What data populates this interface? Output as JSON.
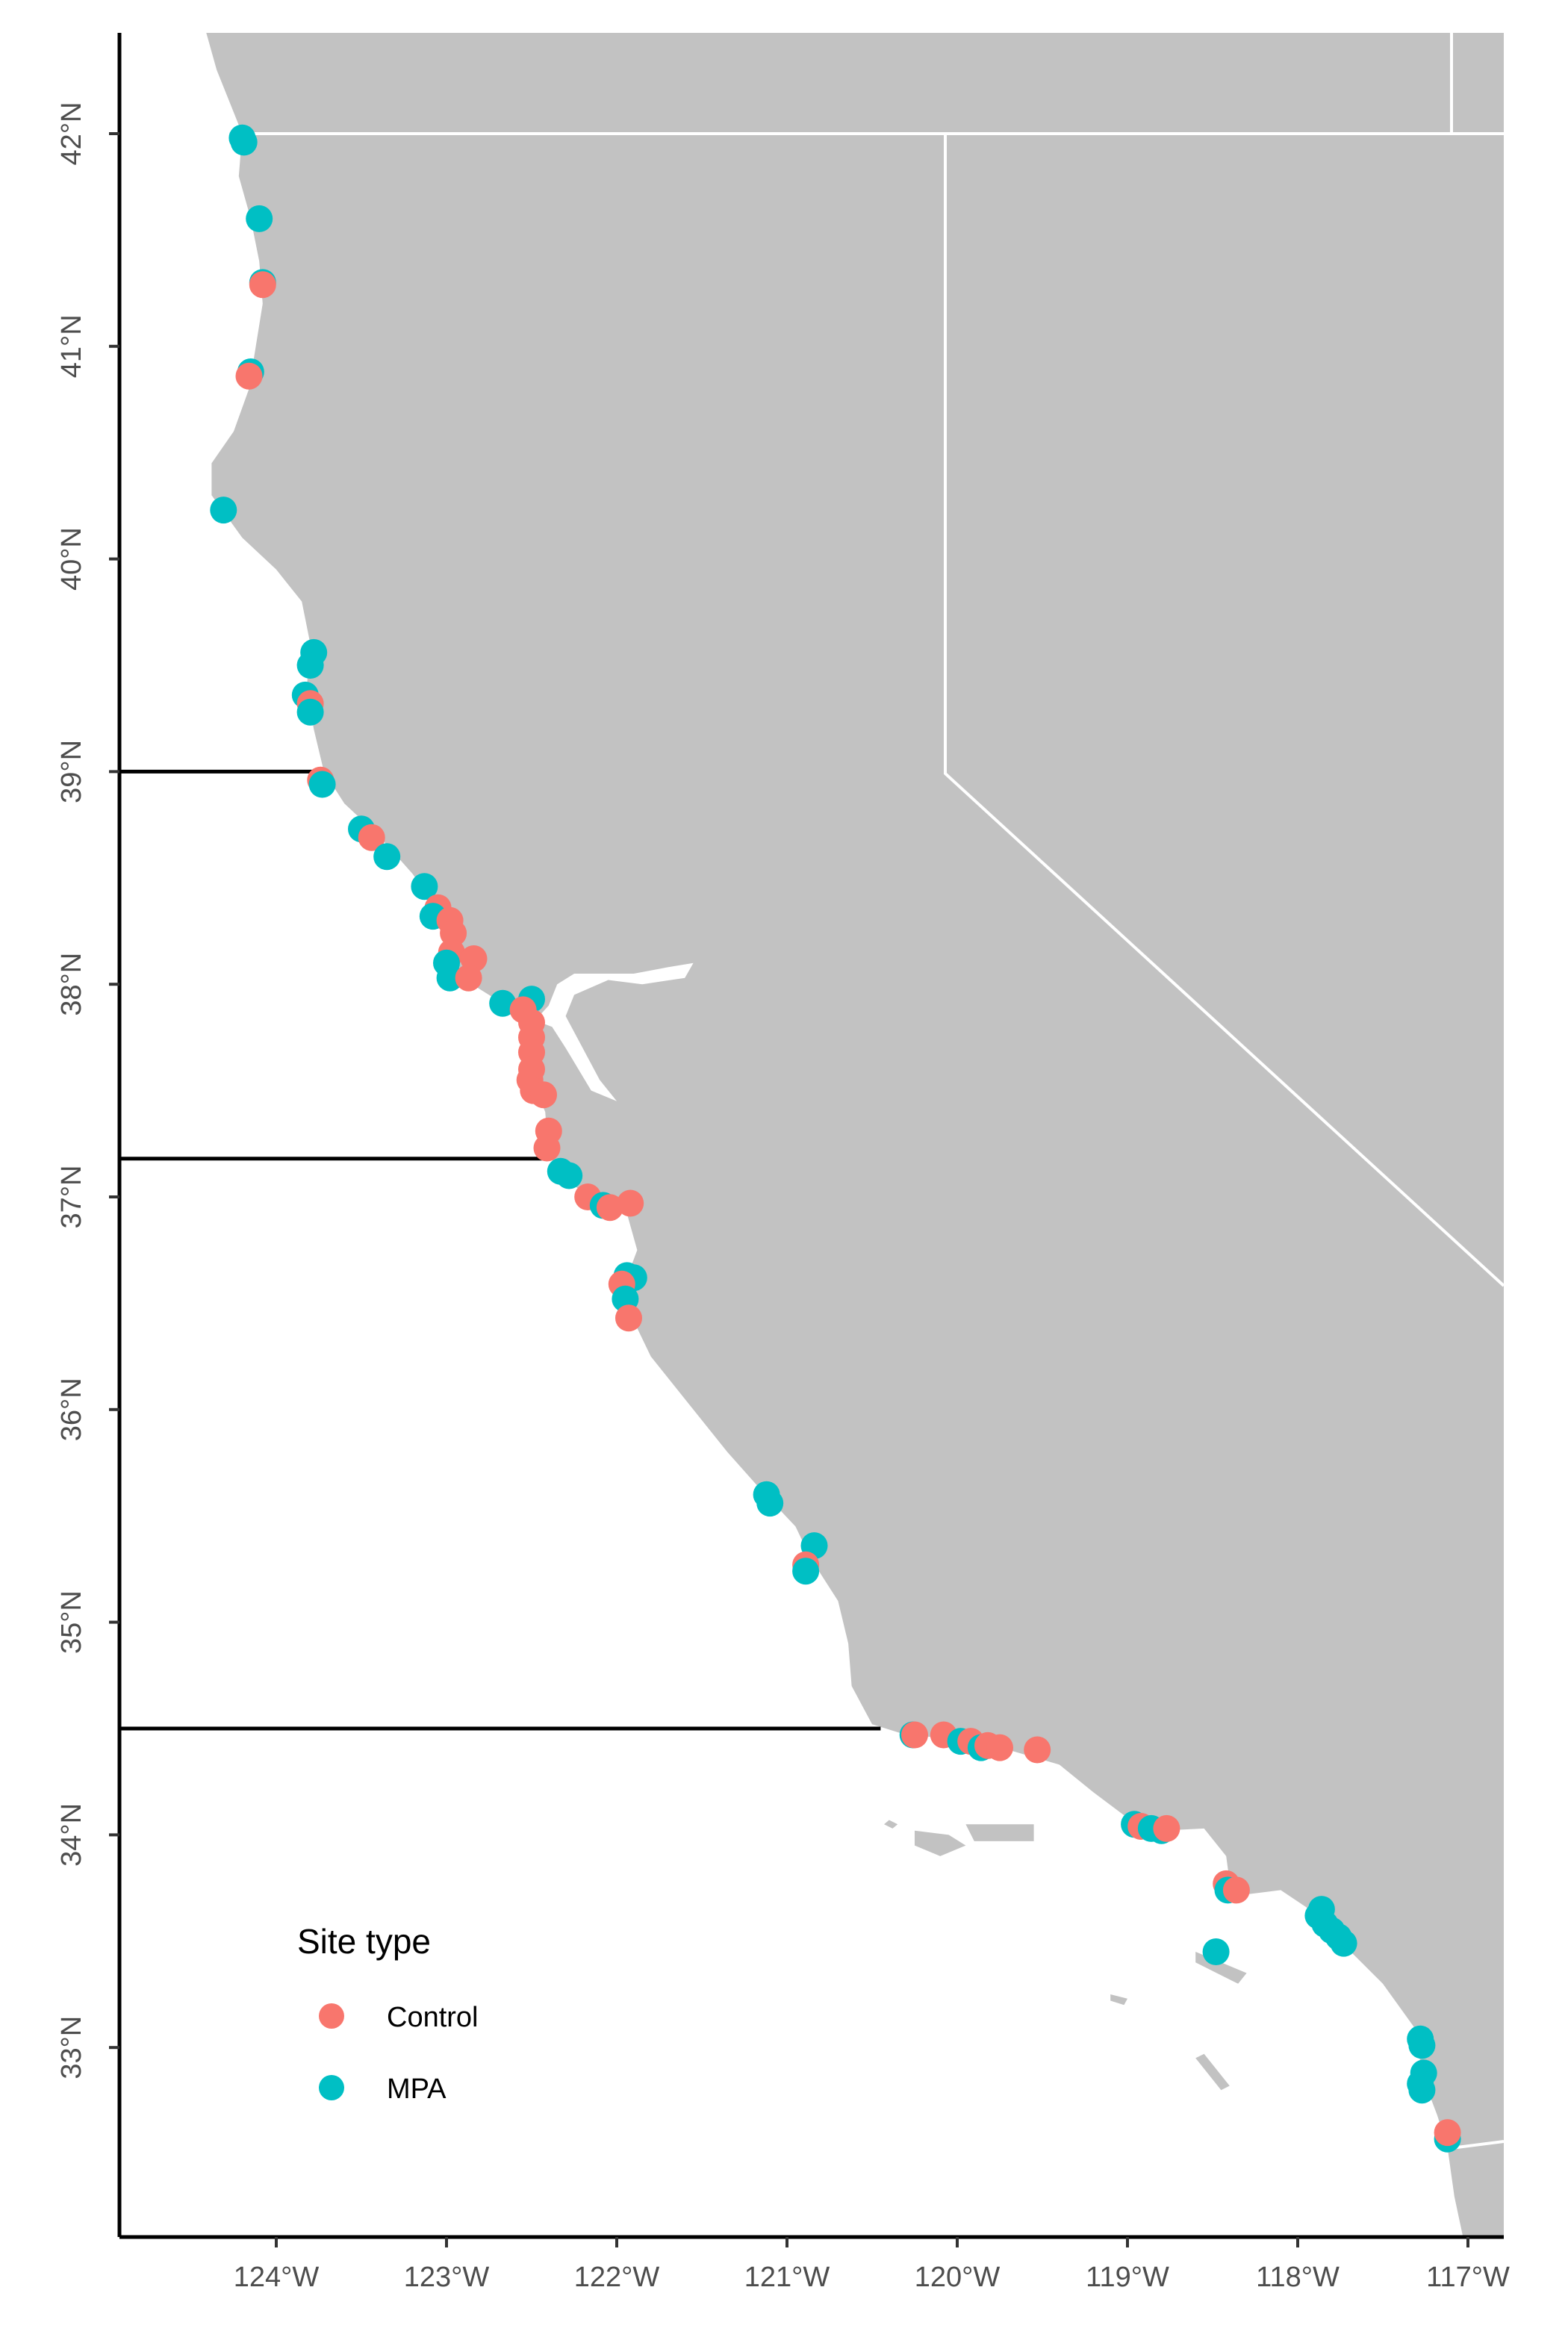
{
  "map": {
    "land_color": "#c2c2c2",
    "water_color": "#ffffff",
    "border_color": "#ffffff",
    "axes": {
      "x_ticks": [
        "124°W",
        "123°W",
        "122°W",
        "121°W",
        "120°W",
        "119°W",
        "118°W",
        "117°W"
      ],
      "y_ticks": [
        "42°N",
        "41°N",
        "40°N",
        "39°N",
        "38°N",
        "37°N",
        "36°N",
        "35°N",
        "34°N",
        "33°N"
      ]
    },
    "legend": {
      "title": "Site type",
      "placement": "bottom-left",
      "items": [
        {
          "label": "Control",
          "color": "#f8766d"
        },
        {
          "label": "MPA",
          "color": "#00bfc4"
        }
      ]
    },
    "region_boundaries_lat": [
      39.0,
      37.18,
      34.5
    ],
    "sites": [
      {
        "lon": -124.2,
        "lat": 41.98,
        "type": "MPA"
      },
      {
        "lon": -124.19,
        "lat": 41.96,
        "type": "MPA"
      },
      {
        "lon": -124.1,
        "lat": 41.6,
        "type": "MPA"
      },
      {
        "lon": -124.08,
        "lat": 41.3,
        "type": "MPA"
      },
      {
        "lon": -124.08,
        "lat": 41.29,
        "type": "Control"
      },
      {
        "lon": -124.15,
        "lat": 40.88,
        "type": "MPA"
      },
      {
        "lon": -124.16,
        "lat": 40.86,
        "type": "Control"
      },
      {
        "lon": -124.31,
        "lat": 40.23,
        "type": "MPA"
      },
      {
        "lon": -123.78,
        "lat": 39.56,
        "type": "MPA"
      },
      {
        "lon": -123.8,
        "lat": 39.5,
        "type": "MPA"
      },
      {
        "lon": -123.83,
        "lat": 39.36,
        "type": "MPA"
      },
      {
        "lon": -123.8,
        "lat": 39.32,
        "type": "Control"
      },
      {
        "lon": -123.8,
        "lat": 39.28,
        "type": "MPA"
      },
      {
        "lon": -123.74,
        "lat": 38.96,
        "type": "Control"
      },
      {
        "lon": -123.73,
        "lat": 38.94,
        "type": "MPA"
      },
      {
        "lon": -123.5,
        "lat": 38.73,
        "type": "MPA"
      },
      {
        "lon": -123.44,
        "lat": 38.69,
        "type": "Control"
      },
      {
        "lon": -123.35,
        "lat": 38.6,
        "type": "MPA"
      },
      {
        "lon": -123.13,
        "lat": 38.46,
        "type": "MPA"
      },
      {
        "lon": -123.05,
        "lat": 38.36,
        "type": "Control"
      },
      {
        "lon": -123.08,
        "lat": 38.32,
        "type": "MPA"
      },
      {
        "lon": -122.98,
        "lat": 38.3,
        "type": "Control"
      },
      {
        "lon": -122.96,
        "lat": 38.24,
        "type": "Control"
      },
      {
        "lon": -122.97,
        "lat": 38.15,
        "type": "Control"
      },
      {
        "lon": -123.0,
        "lat": 38.1,
        "type": "MPA"
      },
      {
        "lon": -122.84,
        "lat": 38.12,
        "type": "Control"
      },
      {
        "lon": -122.98,
        "lat": 38.03,
        "type": "MPA"
      },
      {
        "lon": -122.87,
        "lat": 38.03,
        "type": "Control"
      },
      {
        "lon": -122.67,
        "lat": 37.91,
        "type": "MPA"
      },
      {
        "lon": -122.5,
        "lat": 37.93,
        "type": "MPA"
      },
      {
        "lon": -122.55,
        "lat": 37.88,
        "type": "Control"
      },
      {
        "lon": -122.5,
        "lat": 37.82,
        "type": "Control"
      },
      {
        "lon": -122.5,
        "lat": 37.75,
        "type": "Control"
      },
      {
        "lon": -122.5,
        "lat": 37.68,
        "type": "Control"
      },
      {
        "lon": -122.5,
        "lat": 37.6,
        "type": "Control"
      },
      {
        "lon": -122.51,
        "lat": 37.55,
        "type": "Control"
      },
      {
        "lon": -122.49,
        "lat": 37.5,
        "type": "Control"
      },
      {
        "lon": -122.43,
        "lat": 37.48,
        "type": "Control"
      },
      {
        "lon": -122.4,
        "lat": 37.31,
        "type": "Control"
      },
      {
        "lon": -122.41,
        "lat": 37.23,
        "type": "Control"
      },
      {
        "lon": -122.33,
        "lat": 37.12,
        "type": "MPA"
      },
      {
        "lon": -122.28,
        "lat": 37.1,
        "type": "MPA"
      },
      {
        "lon": -122.17,
        "lat": 37.0,
        "type": "Control"
      },
      {
        "lon": -122.08,
        "lat": 36.96,
        "type": "MPA"
      },
      {
        "lon": -122.04,
        "lat": 36.95,
        "type": "Control"
      },
      {
        "lon": -121.92,
        "lat": 36.97,
        "type": "Control"
      },
      {
        "lon": -121.94,
        "lat": 36.63,
        "type": "MPA"
      },
      {
        "lon": -121.9,
        "lat": 36.62,
        "type": "MPA"
      },
      {
        "lon": -121.97,
        "lat": 36.59,
        "type": "Control"
      },
      {
        "lon": -121.95,
        "lat": 36.52,
        "type": "MPA"
      },
      {
        "lon": -121.93,
        "lat": 36.43,
        "type": "Control"
      },
      {
        "lon": -121.12,
        "lat": 35.6,
        "type": "MPA"
      },
      {
        "lon": -121.1,
        "lat": 35.56,
        "type": "MPA"
      },
      {
        "lon": -120.84,
        "lat": 35.36,
        "type": "MPA"
      },
      {
        "lon": -120.89,
        "lat": 35.27,
        "type": "Control"
      },
      {
        "lon": -120.89,
        "lat": 35.24,
        "type": "MPA"
      },
      {
        "lon": -120.26,
        "lat": 34.47,
        "type": "MPA"
      },
      {
        "lon": -120.25,
        "lat": 34.47,
        "type": "Control"
      },
      {
        "lon": -120.08,
        "lat": 34.47,
        "type": "Control"
      },
      {
        "lon": -119.98,
        "lat": 34.44,
        "type": "MPA"
      },
      {
        "lon": -119.92,
        "lat": 34.44,
        "type": "Control"
      },
      {
        "lon": -119.86,
        "lat": 34.41,
        "type": "MPA"
      },
      {
        "lon": -119.82,
        "lat": 34.42,
        "type": "Control"
      },
      {
        "lon": -119.75,
        "lat": 34.41,
        "type": "Control"
      },
      {
        "lon": -119.53,
        "lat": 34.4,
        "type": "Control"
      },
      {
        "lon": -118.96,
        "lat": 34.05,
        "type": "MPA"
      },
      {
        "lon": -118.92,
        "lat": 34.04,
        "type": "Control"
      },
      {
        "lon": -118.86,
        "lat": 34.03,
        "type": "MPA"
      },
      {
        "lon": -118.8,
        "lat": 34.02,
        "type": "MPA"
      },
      {
        "lon": -118.77,
        "lat": 34.03,
        "type": "Control"
      },
      {
        "lon": -118.42,
        "lat": 33.77,
        "type": "Control"
      },
      {
        "lon": -118.41,
        "lat": 33.74,
        "type": "MPA"
      },
      {
        "lon": -118.36,
        "lat": 33.74,
        "type": "Control"
      },
      {
        "lon": -118.48,
        "lat": 33.45,
        "type": "MPA"
      },
      {
        "lon": -117.88,
        "lat": 33.62,
        "type": "MPA"
      },
      {
        "lon": -117.86,
        "lat": 33.65,
        "type": "MPA"
      },
      {
        "lon": -117.84,
        "lat": 33.58,
        "type": "MPA"
      },
      {
        "lon": -117.8,
        "lat": 33.55,
        "type": "MPA"
      },
      {
        "lon": -117.76,
        "lat": 33.52,
        "type": "MPA"
      },
      {
        "lon": -117.73,
        "lat": 33.49,
        "type": "MPA"
      },
      {
        "lon": -117.28,
        "lat": 33.04,
        "type": "MPA"
      },
      {
        "lon": -117.27,
        "lat": 33.01,
        "type": "MPA"
      },
      {
        "lon": -117.26,
        "lat": 32.88,
        "type": "MPA"
      },
      {
        "lon": -117.28,
        "lat": 32.83,
        "type": "MPA"
      },
      {
        "lon": -117.27,
        "lat": 32.8,
        "type": "MPA"
      },
      {
        "lon": -117.12,
        "lat": 32.57,
        "type": "MPA"
      },
      {
        "lon": -117.12,
        "lat": 32.6,
        "type": "Control"
      }
    ]
  }
}
